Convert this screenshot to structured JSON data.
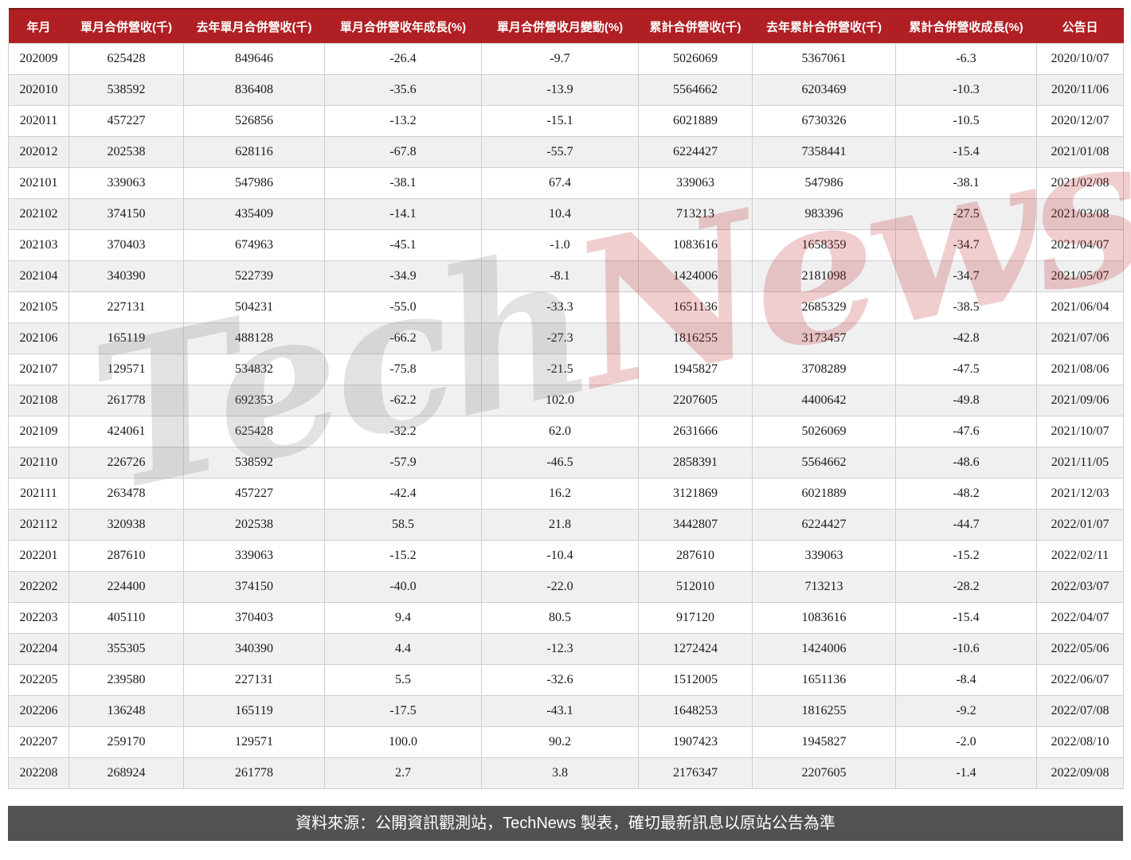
{
  "chart_data": {
    "type": "table",
    "columns": [
      "年月",
      "單月合併營收(千)",
      "去年單月合併營收(千)",
      "單月合併營收年成長(%)",
      "單月合併營收月變動(%)",
      "累計合併營收(千)",
      "去年累計合併營收(千)",
      "累計合併營收成長(%)",
      "公告日"
    ],
    "rows": [
      [
        "202009",
        "625428",
        "849646",
        "-26.4",
        "-9.7",
        "5026069",
        "5367061",
        "-6.3",
        "2020/10/07"
      ],
      [
        "202010",
        "538592",
        "836408",
        "-35.6",
        "-13.9",
        "5564662",
        "6203469",
        "-10.3",
        "2020/11/06"
      ],
      [
        "202011",
        "457227",
        "526856",
        "-13.2",
        "-15.1",
        "6021889",
        "6730326",
        "-10.5",
        "2020/12/07"
      ],
      [
        "202012",
        "202538",
        "628116",
        "-67.8",
        "-55.7",
        "6224427",
        "7358441",
        "-15.4",
        "2021/01/08"
      ],
      [
        "202101",
        "339063",
        "547986",
        "-38.1",
        "67.4",
        "339063",
        "547986",
        "-38.1",
        "2021/02/08"
      ],
      [
        "202102",
        "374150",
        "435409",
        "-14.1",
        "10.4",
        "713213",
        "983396",
        "-27.5",
        "2021/03/08"
      ],
      [
        "202103",
        "370403",
        "674963",
        "-45.1",
        "-1.0",
        "1083616",
        "1658359",
        "-34.7",
        "2021/04/07"
      ],
      [
        "202104",
        "340390",
        "522739",
        "-34.9",
        "-8.1",
        "1424006",
        "2181098",
        "-34.7",
        "2021/05/07"
      ],
      [
        "202105",
        "227131",
        "504231",
        "-55.0",
        "-33.3",
        "1651136",
        "2685329",
        "-38.5",
        "2021/06/04"
      ],
      [
        "202106",
        "165119",
        "488128",
        "-66.2",
        "-27.3",
        "1816255",
        "3173457",
        "-42.8",
        "2021/07/06"
      ],
      [
        "202107",
        "129571",
        "534832",
        "-75.8",
        "-21.5",
        "1945827",
        "3708289",
        "-47.5",
        "2021/08/06"
      ],
      [
        "202108",
        "261778",
        "692353",
        "-62.2",
        "102.0",
        "2207605",
        "4400642",
        "-49.8",
        "2021/09/06"
      ],
      [
        "202109",
        "424061",
        "625428",
        "-32.2",
        "62.0",
        "2631666",
        "5026069",
        "-47.6",
        "2021/10/07"
      ],
      [
        "202110",
        "226726",
        "538592",
        "-57.9",
        "-46.5",
        "2858391",
        "5564662",
        "-48.6",
        "2021/11/05"
      ],
      [
        "202111",
        "263478",
        "457227",
        "-42.4",
        "16.2",
        "3121869",
        "6021889",
        "-48.2",
        "2021/12/03"
      ],
      [
        "202112",
        "320938",
        "202538",
        "58.5",
        "21.8",
        "3442807",
        "6224427",
        "-44.7",
        "2022/01/07"
      ],
      [
        "202201",
        "287610",
        "339063",
        "-15.2",
        "-10.4",
        "287610",
        "339063",
        "-15.2",
        "2022/02/11"
      ],
      [
        "202202",
        "224400",
        "374150",
        "-40.0",
        "-22.0",
        "512010",
        "713213",
        "-28.2",
        "2022/03/07"
      ],
      [
        "202203",
        "405110",
        "370403",
        "9.4",
        "80.5",
        "917120",
        "1083616",
        "-15.4",
        "2022/04/07"
      ],
      [
        "202204",
        "355305",
        "340390",
        "4.4",
        "-12.3",
        "1272424",
        "1424006",
        "-10.6",
        "2022/05/06"
      ],
      [
        "202205",
        "239580",
        "227131",
        "5.5",
        "-32.6",
        "1512005",
        "1651136",
        "-8.4",
        "2022/06/07"
      ],
      [
        "202206",
        "136248",
        "165119",
        "-17.5",
        "-43.1",
        "1648253",
        "1816255",
        "-9.2",
        "2022/07/08"
      ],
      [
        "202207",
        "259170",
        "129571",
        "100.0",
        "90.2",
        "1907423",
        "1945827",
        "-2.0",
        "2022/08/10"
      ],
      [
        "202208",
        "268924",
        "261778",
        "2.7",
        "3.8",
        "2176347",
        "2207605",
        "-1.4",
        "2022/09/08"
      ]
    ]
  },
  "watermark": {
    "part1": "Tech",
    "part2": "News"
  },
  "footer": {
    "text": "資料來源：公開資訊觀測站，TechNews 製表，確切最新訊息以原站公告為準"
  },
  "colors": {
    "header_bg": "#b01f23",
    "header_top_border": "#7c1619",
    "row_alt_bg": "#f0f0f0",
    "border": "#cfcfcf",
    "footer_bg": "#525252",
    "watermark_gray": "#6e6e6e",
    "watermark_red": "#ba2026"
  }
}
